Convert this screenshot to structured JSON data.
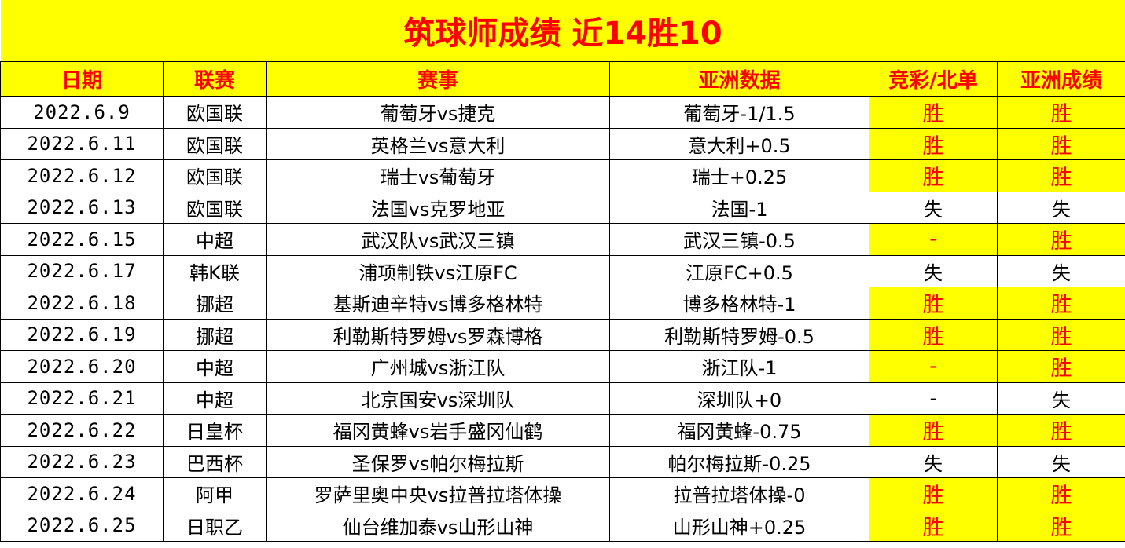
{
  "title": "筑球师成绩  近14胜10",
  "headers": [
    "日期",
    "联赛",
    "赛事",
    "亚洲数据",
    "竞彩/北单",
    "亚洲成绩"
  ],
  "colors": {
    "highlight_bg": "#ffff00",
    "accent_text": "#ff0000"
  },
  "rows": [
    {
      "date": "2022.6.9",
      "league": "欧国联",
      "match": "葡萄牙vs捷克",
      "asian": "葡萄牙-1/1.5",
      "jc": "胜",
      "jc_hl": true,
      "result": "胜",
      "result_hl": true
    },
    {
      "date": "2022.6.11",
      "league": "欧国联",
      "match": "英格兰vs意大利",
      "asian": "意大利+0.5",
      "jc": "胜",
      "jc_hl": true,
      "result": "胜",
      "result_hl": true
    },
    {
      "date": "2022.6.12",
      "league": "欧国联",
      "match": "瑞士vs葡萄牙",
      "asian": "瑞士+0.25",
      "jc": "胜",
      "jc_hl": true,
      "result": "胜",
      "result_hl": true
    },
    {
      "date": "2022.6.13",
      "league": "欧国联",
      "match": "法国vs克罗地亚",
      "asian": "法国-1",
      "jc": "失",
      "jc_hl": false,
      "result": "失",
      "result_hl": false
    },
    {
      "date": "2022.6.15",
      "league": "中超",
      "match": "武汉队vs武汉三镇",
      "asian": "武汉三镇-0.5",
      "jc": "-",
      "jc_hl": true,
      "result": "胜",
      "result_hl": true
    },
    {
      "date": "2022.6.17",
      "league": "韩K联",
      "match": "浦项制铁vs江原FC",
      "asian": "江原FC+0.5",
      "jc": "失",
      "jc_hl": false,
      "result": "失",
      "result_hl": false
    },
    {
      "date": "2022.6.18",
      "league": "挪超",
      "match": "基斯迪辛特vs博多格林特",
      "asian": "博多格林特-1",
      "jc": "胜",
      "jc_hl": true,
      "result": "胜",
      "result_hl": true
    },
    {
      "date": "2022.6.19",
      "league": "挪超",
      "match": "利勒斯特罗姆vs罗森博格",
      "asian": "利勒斯特罗姆-0.5",
      "jc": "胜",
      "jc_hl": true,
      "result": "胜",
      "result_hl": true
    },
    {
      "date": "2022.6.20",
      "league": "中超",
      "match": "广州城vs浙江队",
      "asian": "浙江队-1",
      "jc": "-",
      "jc_hl": true,
      "result": "胜",
      "result_hl": true
    },
    {
      "date": "2022.6.21",
      "league": "中超",
      "match": "北京国安vs深圳队",
      "asian": "深圳队+0",
      "jc": "-",
      "jc_hl": false,
      "result": "失",
      "result_hl": false
    },
    {
      "date": "2022.6.22",
      "league": "日皇杯",
      "match": "福冈黄蜂vs岩手盛冈仙鹤",
      "asian": "福冈黄蜂-0.75",
      "jc": "胜",
      "jc_hl": true,
      "result": "胜",
      "result_hl": true
    },
    {
      "date": "2022.6.23",
      "league": "巴西杯",
      "match": "圣保罗vs帕尔梅拉斯",
      "asian": "帕尔梅拉斯-0.25",
      "jc": "失",
      "jc_hl": false,
      "result": "失",
      "result_hl": false
    },
    {
      "date": "2022.6.24",
      "league": "阿甲",
      "match": "罗萨里奥中央vs拉普拉塔体操",
      "asian": "拉普拉塔体操-0",
      "jc": "胜",
      "jc_hl": true,
      "result": "胜",
      "result_hl": true
    },
    {
      "date": "2022.6.25",
      "league": "日职乙",
      "match": "仙台维加泰vs山形山神",
      "asian": "山形山神+0.25",
      "jc": "胜",
      "jc_hl": true,
      "result": "胜",
      "result_hl": true
    }
  ]
}
